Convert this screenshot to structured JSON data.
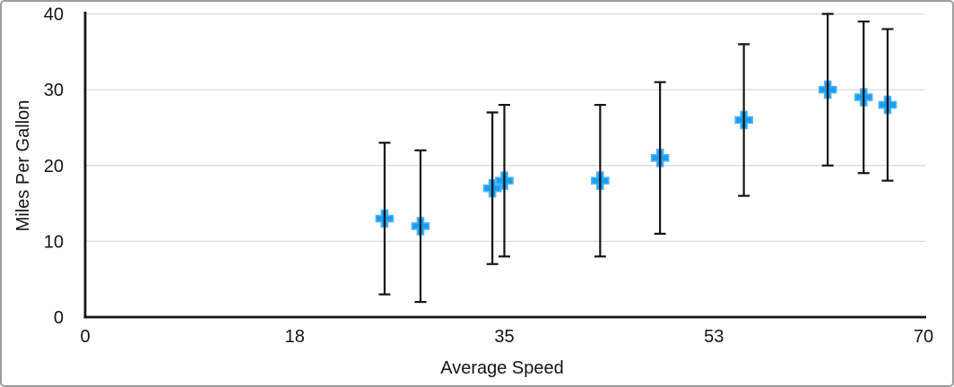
{
  "figure": {
    "background": "#ffffff",
    "border_color": "#9c9c9c"
  },
  "chart_data": {
    "type": "scatter",
    "title": "",
    "xlabel": "Average Speed",
    "ylabel": "Miles Per Gallon",
    "xlim": [
      0,
      70
    ],
    "ylim": [
      0,
      40
    ],
    "grid": "horizontal-only",
    "legend": "none",
    "axis_color": "#141414",
    "gridline_color": "#d9d9d9",
    "x_ticks": [
      {
        "value": 0,
        "label": "0"
      },
      {
        "value": 17.5,
        "label": "18"
      },
      {
        "value": 35,
        "label": "35"
      },
      {
        "value": 52.5,
        "label": "53"
      },
      {
        "value": 70,
        "label": "70"
      }
    ],
    "y_ticks": [
      {
        "value": 0,
        "label": "0"
      },
      {
        "value": 10,
        "label": "10"
      },
      {
        "value": 20,
        "label": "20"
      },
      {
        "value": 30,
        "label": "30"
      },
      {
        "value": 40,
        "label": "40"
      }
    ],
    "series": [
      {
        "name": "Miles Per Gallon",
        "marker": "plus",
        "marker_color": "#1b9cf0",
        "marker_edge_color": "#4db3f7",
        "error_bar_color": "#141414",
        "error_y_plus": 10,
        "error_y_minus": 10,
        "points": [
          {
            "x": 25,
            "y": 13
          },
          {
            "x": 28,
            "y": 12
          },
          {
            "x": 34,
            "y": 17
          },
          {
            "x": 35,
            "y": 18
          },
          {
            "x": 43,
            "y": 18
          },
          {
            "x": 48,
            "y": 21
          },
          {
            "x": 55,
            "y": 26
          },
          {
            "x": 62,
            "y": 30
          },
          {
            "x": 65,
            "y": 29
          },
          {
            "x": 67,
            "y": 28
          }
        ]
      }
    ]
  }
}
